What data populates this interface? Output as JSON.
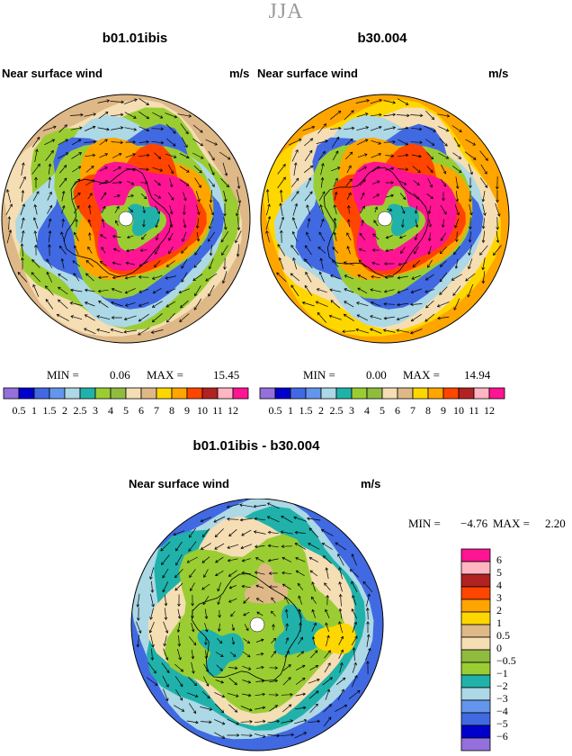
{
  "page": {
    "season": "JJA"
  },
  "panels": [
    {
      "title": "b01.01ibis",
      "left_label": "Near surface wind",
      "right_label": "m/s",
      "min_label": "MIN =",
      "min_value": "0.06",
      "max_label": "MAX =",
      "max_value": "15.45"
    },
    {
      "title": "b30.004",
      "left_label": "Near surface wind",
      "right_label": "m/s",
      "min_label": "MIN =",
      "min_value": "0.00",
      "max_label": "MAX =",
      "max_value": "14.94"
    },
    {
      "title": "b01.01ibis - b30.004",
      "left_label": "Near surface wind",
      "right_label": "m/s",
      "min_label": "MIN =",
      "min_value": "−4.76",
      "max_label": "MAX =",
      "max_value": "2.20"
    }
  ],
  "chart_data": [
    {
      "type": "heatmap",
      "title": "b01.01ibis",
      "subtitle": "Near surface wind",
      "units": "m/s",
      "projection": "south polar stereographic",
      "min": 0.06,
      "max": 15.45,
      "colorbar_labels": [
        "0.5",
        "1",
        "1.5",
        "2",
        "2.5",
        "3",
        "4",
        "5",
        "6",
        "7",
        "8",
        "9",
        "10",
        "11",
        "12"
      ],
      "colorbar_levels": [
        0.5,
        1,
        1.5,
        2,
        2.5,
        3,
        4,
        5,
        6,
        7,
        8,
        9,
        10,
        11,
        12
      ],
      "colorbar_colors": [
        "#9370db",
        "#0000cd",
        "#4169e1",
        "#6495ed",
        "#add8e6",
        "#20b2aa",
        "#9acd32",
        "#8fbc3f",
        "#f5deb3",
        "#deb887",
        "#ffd700",
        "#ffa500",
        "#ff4500",
        "#b22222",
        "#ffb6c1",
        "#ff1493"
      ]
    },
    {
      "type": "heatmap",
      "title": "b30.004",
      "subtitle": "Near surface wind",
      "units": "m/s",
      "projection": "south polar stereographic",
      "min": 0.0,
      "max": 14.94,
      "colorbar_labels": [
        "0.5",
        "1",
        "1.5",
        "2",
        "2.5",
        "3",
        "4",
        "5",
        "6",
        "7",
        "8",
        "9",
        "10",
        "11",
        "12"
      ],
      "colorbar_levels": [
        0.5,
        1,
        1.5,
        2,
        2.5,
        3,
        4,
        5,
        6,
        7,
        8,
        9,
        10,
        11,
        12
      ],
      "colorbar_colors": [
        "#9370db",
        "#0000cd",
        "#4169e1",
        "#6495ed",
        "#add8e6",
        "#20b2aa",
        "#9acd32",
        "#8fbc3f",
        "#f5deb3",
        "#deb887",
        "#ffd700",
        "#ffa500",
        "#ff4500",
        "#b22222",
        "#ffb6c1",
        "#ff1493"
      ]
    },
    {
      "type": "heatmap",
      "title": "b01.01ibis - b30.004",
      "subtitle": "Near surface wind",
      "units": "m/s",
      "projection": "south polar stereographic",
      "min": -4.76,
      "max": 2.2,
      "colorbar_labels": [
        "6",
        "5",
        "4",
        "3",
        "2",
        "1",
        "0.5",
        "0",
        "−0.5",
        "−1",
        "−2",
        "−3",
        "−4",
        "−5",
        "−6"
      ],
      "colorbar_levels": [
        6,
        5,
        4,
        3,
        2,
        1,
        0.5,
        0,
        -0.5,
        -1,
        -2,
        -3,
        -4,
        -5,
        -6
      ],
      "colorbar_colors": [
        "#ff1493",
        "#ffb6c1",
        "#b22222",
        "#ff4500",
        "#ffa500",
        "#ffd700",
        "#deb887",
        "#f5deb3",
        "#8fbc3f",
        "#9acd32",
        "#20b2aa",
        "#add8e6",
        "#6495ed",
        "#4169e1",
        "#0000cd",
        "#9370db"
      ]
    }
  ]
}
